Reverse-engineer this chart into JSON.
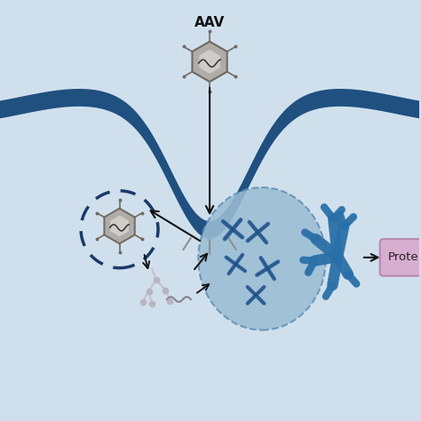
{
  "background_color": "#cfe0ec",
  "aav_label": "AAV",
  "protein_label": "Prote",
  "colors": {
    "cell_membrane": "#1f5080",
    "nucleus_fill": "#9bbdd4",
    "nucleus_edge": "#6090b8",
    "chromosome": "#2a6098",
    "chromosome_dark": "#1a4070",
    "virus_body": "#b0aca8",
    "virus_body2": "#c8c4be",
    "virus_edge": "#706860",
    "dashed_circle": "#1a3a6a",
    "protein_box": "#d8aed0",
    "protein_box_edge": "#b888b0",
    "arrow_color": "#111111",
    "ribosome": "#2a70a8",
    "tick_color": "#909090",
    "dna_strand": "#c0bcc8"
  }
}
